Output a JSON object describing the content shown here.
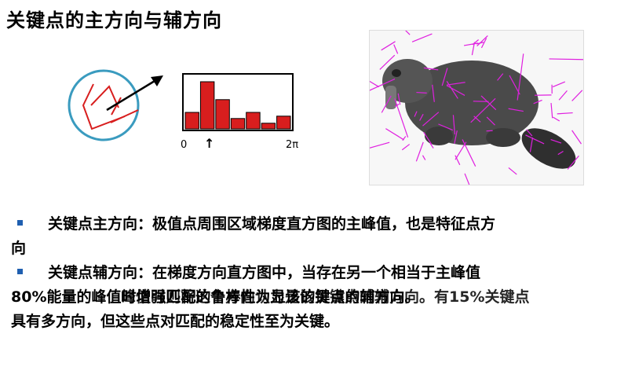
{
  "title": "关键点的主方向与辅方向",
  "histogram": {
    "axis_start": "0",
    "axis_end": "2π",
    "arrow_symbol": "↑",
    "bars": [
      0.35,
      1.0,
      0.62,
      0.22,
      0.35,
      0.12,
      0.27
    ],
    "bar_color": "#d81e1e"
  },
  "photo": {
    "name": "beaver-with-keypoint-vectors",
    "vector_color": "#e020e0"
  },
  "bullets": {
    "item1_line1": "关键点主方向：极值点周围区域梯度直方图的主峰值，也是特征点方",
    "item1_line2": "向",
    "item2_line1": "关键点辅方向：在梯度方向直方图中，当存在另一个相当于主峰值",
    "item2_line2a": "80%能量的峰值时增强匹配的鲁棒性为显该的键点的辅方向。",
    "item2_line2b": "峰值时则将这个方向认为是该关键点的辅方向。有15%关键点",
    "item2_line3": "具有多方向，但这些点对匹配的稳定性至为关键。"
  },
  "colors": {
    "bullet": "#1f5fb0",
    "circle": "#3a9bbf"
  }
}
